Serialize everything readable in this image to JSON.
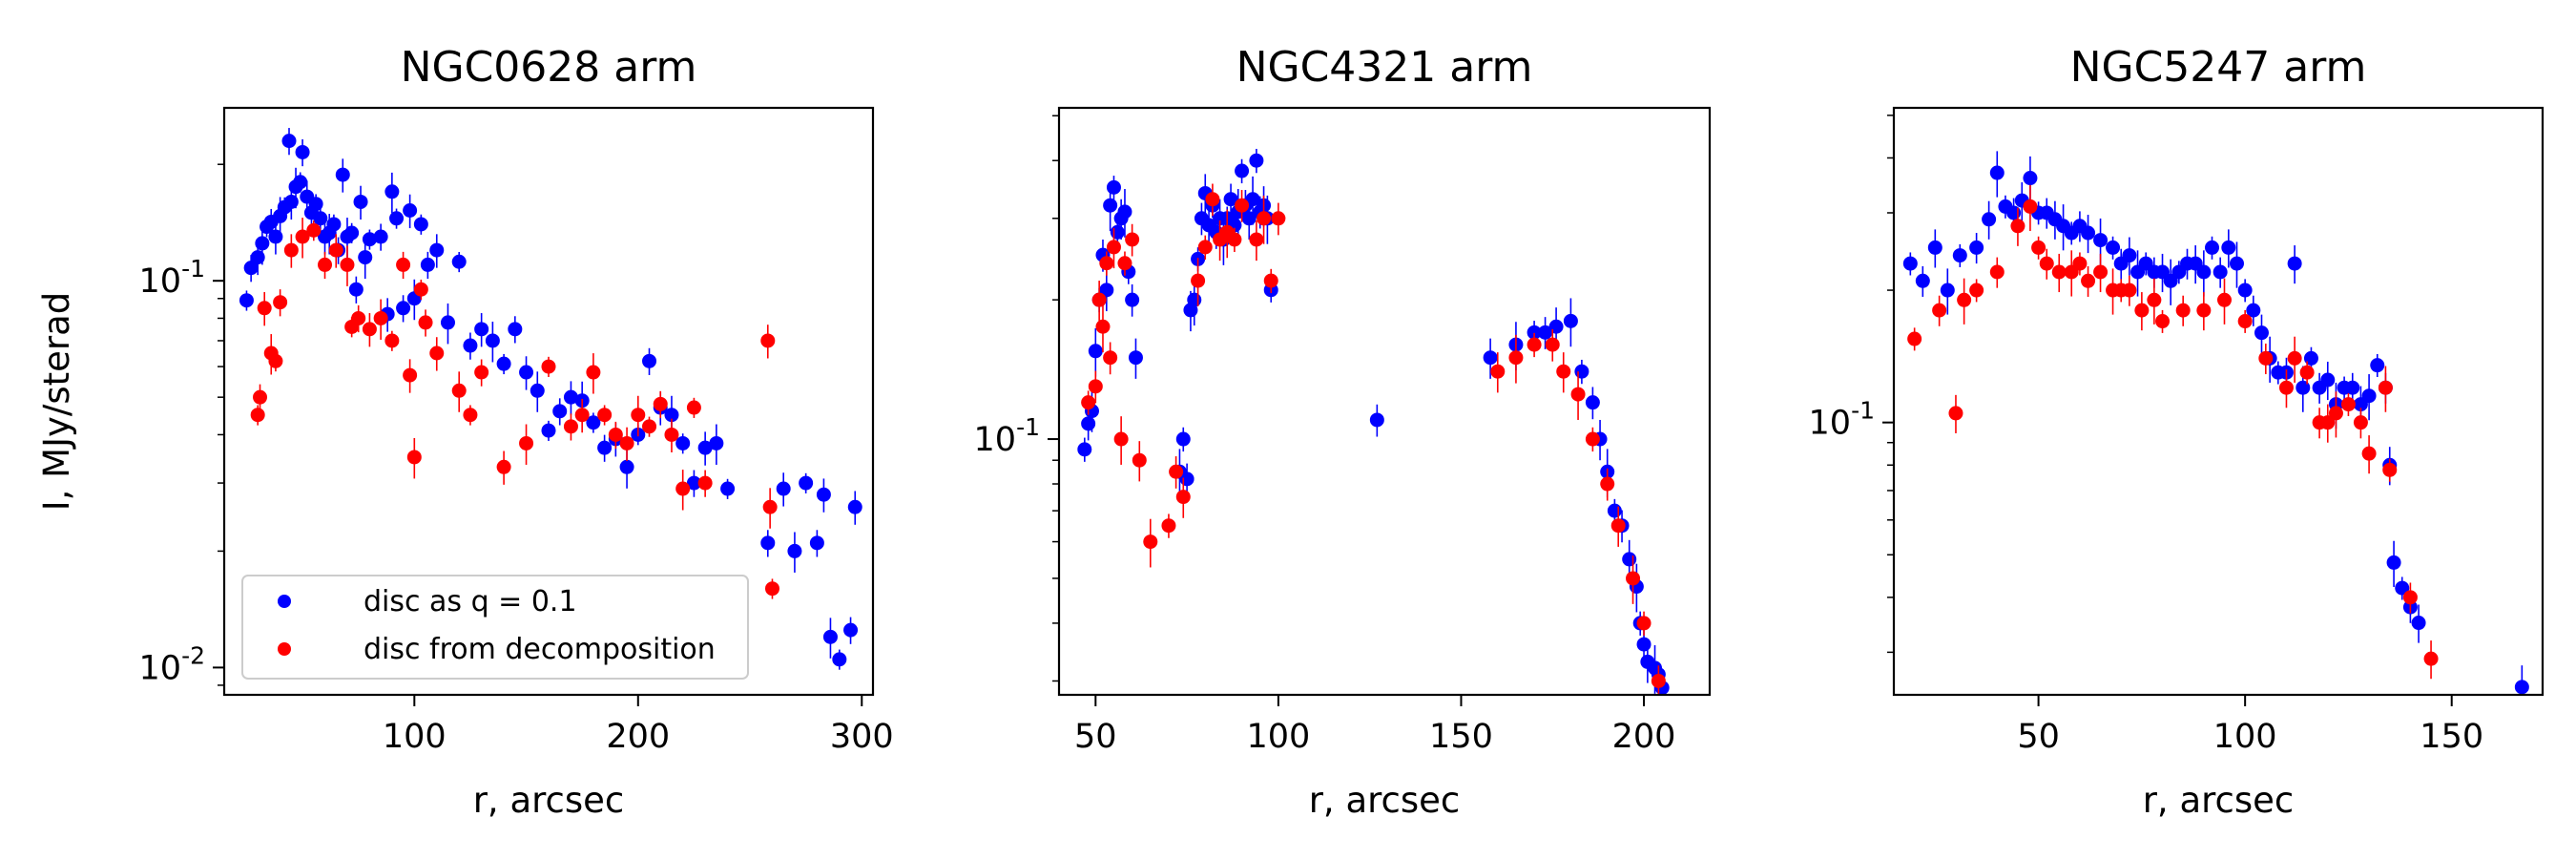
{
  "figure": {
    "colors": {
      "series1": "#0000ff",
      "series2": "#ff0000"
    }
  },
  "legend": {
    "entries": [
      {
        "label": "disc as q = 0.1",
        "color": "#0000ff"
      },
      {
        "label": "disc from decomposition",
        "color": "#ff0000"
      }
    ],
    "placement": "lower-left of first panel"
  },
  "chart_data": [
    {
      "type": "scatter",
      "title": "NGC0628 arm",
      "xlabel": "r, arcsec",
      "ylabel": "I, MJy/sterad",
      "xlim": [
        15,
        305
      ],
      "ylim": [
        0.0085,
        0.28
      ],
      "yscale": "log",
      "xticks": [
        100,
        200,
        300
      ],
      "xtick_labels": [
        "100",
        "200",
        "300"
      ],
      "yticks": [
        0.01,
        0.1
      ],
      "ytick_labels": [
        "10^-2",
        "10^-1"
      ],
      "series": [
        {
          "name": "disc as q = 0.1",
          "color": "#0000ff",
          "x": [
            25,
            27,
            30,
            32,
            34,
            36,
            38,
            40,
            42,
            44,
            45,
            47,
            49,
            50,
            52,
            54,
            56,
            58,
            60,
            62,
            64,
            66,
            68,
            70,
            72,
            74,
            76,
            78,
            80,
            85,
            88,
            90,
            92,
            95,
            98,
            100,
            103,
            106,
            110,
            115,
            120,
            125,
            130,
            135,
            140,
            145,
            150,
            155,
            160,
            165,
            170,
            175,
            180,
            185,
            190,
            195,
            200,
            205,
            210,
            215,
            220,
            225,
            230,
            235,
            240,
            258,
            265,
            270,
            275,
            280,
            283,
            286,
            290,
            295,
            297
          ],
          "y": [
            0.089,
            0.108,
            0.115,
            0.125,
            0.138,
            0.142,
            0.13,
            0.147,
            0.155,
            0.23,
            0.16,
            0.175,
            0.18,
            0.215,
            0.165,
            0.15,
            0.158,
            0.145,
            0.13,
            0.133,
            0.14,
            0.12,
            0.188,
            0.13,
            0.133,
            0.095,
            0.16,
            0.115,
            0.128,
            0.13,
            0.082,
            0.17,
            0.145,
            0.085,
            0.152,
            0.09,
            0.14,
            0.11,
            0.12,
            0.078,
            0.112,
            0.068,
            0.075,
            0.07,
            0.061,
            0.075,
            0.058,
            0.052,
            0.041,
            0.046,
            0.05,
            0.049,
            0.043,
            0.037,
            0.039,
            0.033,
            0.04,
            0.062,
            0.047,
            0.045,
            0.038,
            0.03,
            0.037,
            0.038,
            0.029,
            0.021,
            0.029,
            0.02,
            0.03,
            0.021,
            0.028,
            0.012,
            0.0105,
            0.0125,
            0.026
          ]
        },
        {
          "name": "disc from decomposition",
          "color": "#ff0000",
          "x": [
            30,
            31,
            33,
            36,
            38,
            40,
            45,
            50,
            55,
            60,
            65,
            70,
            72,
            75,
            80,
            85,
            90,
            95,
            98,
            100,
            103,
            105,
            110,
            120,
            125,
            130,
            140,
            150,
            160,
            170,
            175,
            180,
            185,
            190,
            195,
            200,
            205,
            210,
            215,
            220,
            225,
            230,
            258,
            259,
            260
          ],
          "y": [
            0.045,
            0.05,
            0.085,
            0.065,
            0.062,
            0.088,
            0.12,
            0.13,
            0.135,
            0.11,
            0.12,
            0.11,
            0.076,
            0.08,
            0.075,
            0.08,
            0.07,
            0.11,
            0.057,
            0.035,
            0.095,
            0.078,
            0.065,
            0.052,
            0.045,
            0.058,
            0.033,
            0.038,
            0.06,
            0.042,
            0.045,
            0.058,
            0.045,
            0.04,
            0.038,
            0.045,
            0.042,
            0.048,
            0.04,
            0.029,
            0.047,
            0.03,
            0.07,
            0.026,
            0.016
          ]
        }
      ]
    },
    {
      "type": "scatter",
      "title": "NGC4321 arm",
      "xlabel": "r, arcsec",
      "ylabel": "",
      "xlim": [
        40,
        218
      ],
      "ylim": [
        0.028,
        0.52
      ],
      "yscale": "log",
      "xticks": [
        50,
        100,
        150,
        200
      ],
      "xtick_labels": [
        "50",
        "100",
        "150",
        "200"
      ],
      "yticks": [
        0.1
      ],
      "ytick_labels": [
        "10^-1"
      ],
      "series": [
        {
          "name": "disc as q = 0.1",
          "color": "#0000ff",
          "x": [
            47,
            48,
            49,
            50,
            51,
            52,
            53,
            54,
            55,
            56,
            57,
            58,
            59,
            60,
            61,
            73,
            74,
            75,
            76,
            77,
            78,
            79,
            80,
            81,
            82,
            83,
            84,
            85,
            86,
            87,
            88,
            89,
            90,
            91,
            92,
            93,
            94,
            95,
            96,
            97,
            98,
            127,
            158,
            165,
            170,
            173,
            176,
            180,
            183,
            186,
            188,
            190,
            192,
            194,
            196,
            198,
            199,
            200,
            201,
            203,
            204,
            205
          ],
          "y": [
            0.095,
            0.108,
            0.115,
            0.155,
            0.2,
            0.25,
            0.21,
            0.32,
            0.35,
            0.28,
            0.3,
            0.31,
            0.23,
            0.2,
            0.15,
            0.085,
            0.1,
            0.082,
            0.19,
            0.2,
            0.245,
            0.3,
            0.34,
            0.29,
            0.32,
            0.28,
            0.3,
            0.27,
            0.3,
            0.33,
            0.29,
            0.31,
            0.38,
            0.32,
            0.3,
            0.33,
            0.4,
            0.31,
            0.32,
            0.3,
            0.21,
            0.11,
            0.15,
            0.16,
            0.17,
            0.17,
            0.175,
            0.18,
            0.14,
            0.12,
            0.1,
            0.085,
            0.07,
            0.065,
            0.055,
            0.048,
            0.04,
            0.036,
            0.033,
            0.032,
            0.031,
            0.029
          ]
        },
        {
          "name": "disc from decomposition",
          "color": "#ff0000",
          "x": [
            48,
            50,
            51,
            52,
            53,
            54,
            55,
            57,
            58,
            60,
            62,
            65,
            70,
            72,
            74,
            78,
            80,
            82,
            84,
            86,
            88,
            90,
            94,
            96,
            98,
            100,
            160,
            165,
            170,
            175,
            178,
            182,
            186,
            190,
            193,
            197,
            200,
            204
          ],
          "y": [
            0.12,
            0.13,
            0.2,
            0.175,
            0.24,
            0.15,
            0.26,
            0.1,
            0.24,
            0.27,
            0.09,
            0.06,
            0.065,
            0.085,
            0.075,
            0.22,
            0.26,
            0.33,
            0.27,
            0.28,
            0.27,
            0.32,
            0.27,
            0.3,
            0.22,
            0.3,
            0.14,
            0.15,
            0.16,
            0.16,
            0.14,
            0.125,
            0.1,
            0.08,
            0.065,
            0.05,
            0.04,
            0.03
          ]
        }
      ]
    },
    {
      "type": "scatter",
      "title": "NGC5247 arm",
      "xlabel": "r, arcsec",
      "ylabel": "",
      "xlim": [
        15,
        172
      ],
      "ylim": [
        0.024,
        0.52
      ],
      "yscale": "log",
      "xticks": [
        50,
        100,
        150
      ],
      "xtick_labels": [
        "50",
        "100",
        "150"
      ],
      "yticks": [
        0.1
      ],
      "ytick_labels": [
        "10^-1"
      ],
      "series": [
        {
          "name": "disc as q = 0.1",
          "color": "#0000ff",
          "x": [
            19,
            22,
            25,
            28,
            31,
            35,
            38,
            40,
            42,
            44,
            46,
            48,
            50,
            52,
            54,
            56,
            58,
            60,
            62,
            65,
            68,
            70,
            72,
            74,
            76,
            78,
            80,
            82,
            84,
            86,
            88,
            90,
            92,
            94,
            96,
            98,
            100,
            102,
            104,
            106,
            108,
            110,
            112,
            114,
            116,
            118,
            120,
            122,
            124,
            126,
            128,
            130,
            132,
            134,
            135,
            136,
            138,
            140,
            142,
            167
          ],
          "y": [
            0.23,
            0.21,
            0.25,
            0.2,
            0.24,
            0.25,
            0.29,
            0.37,
            0.31,
            0.3,
            0.32,
            0.36,
            0.3,
            0.3,
            0.29,
            0.28,
            0.27,
            0.28,
            0.27,
            0.26,
            0.25,
            0.23,
            0.24,
            0.22,
            0.23,
            0.22,
            0.22,
            0.21,
            0.22,
            0.23,
            0.23,
            0.22,
            0.25,
            0.22,
            0.25,
            0.23,
            0.2,
            0.18,
            0.16,
            0.14,
            0.13,
            0.13,
            0.23,
            0.12,
            0.14,
            0.12,
            0.125,
            0.11,
            0.12,
            0.12,
            0.11,
            0.115,
            0.135,
            0.12,
            0.08,
            0.048,
            0.042,
            0.038,
            0.035,
            0.025
          ]
        },
        {
          "name": "disc from decomposition",
          "color": "#ff0000",
          "x": [
            20,
            26,
            30,
            32,
            35,
            40,
            45,
            48,
            50,
            52,
            55,
            58,
            60,
            62,
            65,
            68,
            70,
            72,
            75,
            78,
            80,
            85,
            90,
            95,
            100,
            105,
            110,
            112,
            115,
            118,
            120,
            122,
            125,
            128,
            130,
            134,
            135,
            140,
            145
          ],
          "y": [
            0.155,
            0.18,
            0.105,
            0.19,
            0.2,
            0.22,
            0.28,
            0.31,
            0.25,
            0.23,
            0.22,
            0.22,
            0.23,
            0.21,
            0.22,
            0.2,
            0.2,
            0.2,
            0.18,
            0.19,
            0.17,
            0.18,
            0.18,
            0.19,
            0.17,
            0.14,
            0.12,
            0.14,
            0.13,
            0.1,
            0.1,
            0.105,
            0.11,
            0.1,
            0.085,
            0.12,
            0.078,
            0.04,
            0.029
          ]
        }
      ]
    }
  ]
}
